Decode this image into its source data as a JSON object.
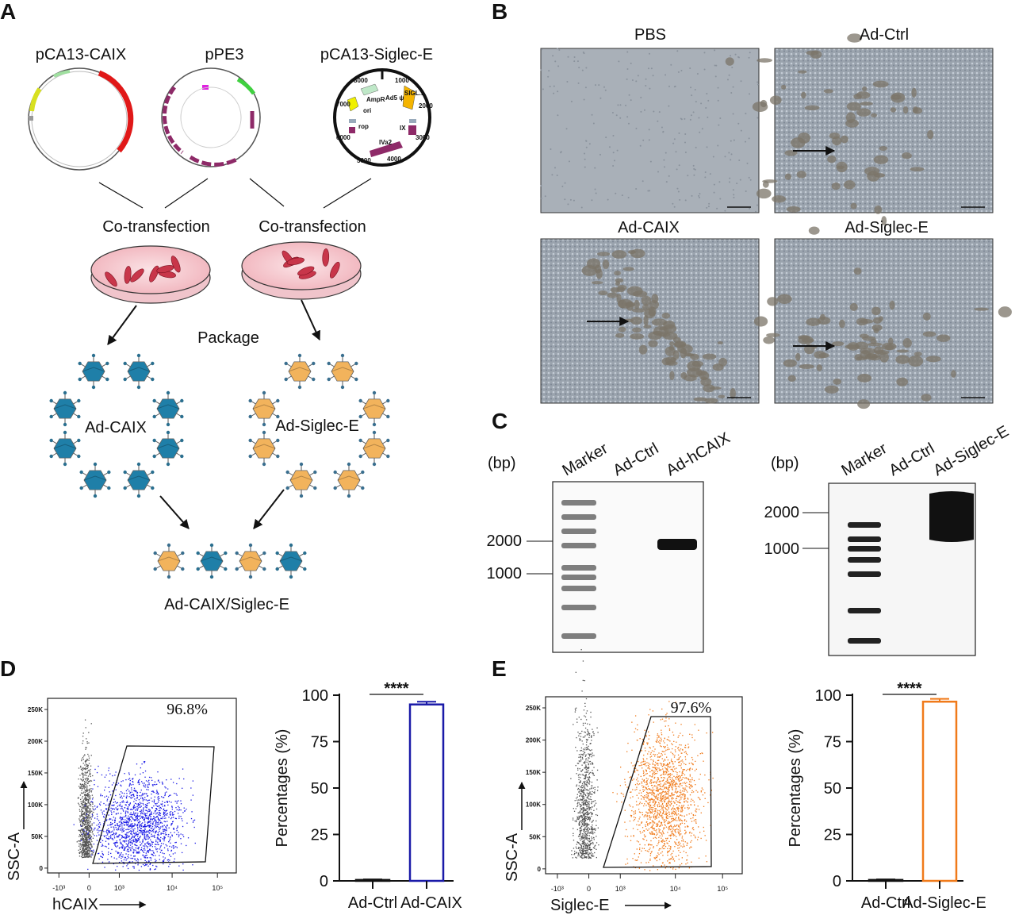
{
  "panels": {
    "A": {
      "label": "A",
      "plasmids": [
        "pCA13-CAIX",
        "pPE3",
        "pCA13-Siglec-E"
      ],
      "siglec_map": {
        "ticks": [
          "1000",
          "2000",
          "3000",
          "4000",
          "5000",
          "6000",
          "7000",
          "8000"
        ],
        "features": [
          "AmpR",
          "ori",
          "Ad5 ψ",
          "SIGL...",
          "IX",
          "IVa2",
          "rop"
        ]
      },
      "cotransfection": [
        "Co-transfection",
        "Co-transfection"
      ],
      "package": "Package",
      "virus_left": "Ad-CAIX",
      "virus_right": "Ad-Siglec-E",
      "combined": "Ad-CAIX/Siglec-E",
      "colors": {
        "caix_virus": "#1f7fa8",
        "siglec_virus": "#f2b35c",
        "dish_cells": "#c8364a"
      }
    },
    "B": {
      "label": "B",
      "images": [
        "PBS",
        "Ad-Ctrl",
        "Ad-CAIX",
        "Ad-Siglec-E"
      ]
    },
    "C": {
      "label": "C",
      "gel1": {
        "unit": "(bp)",
        "lanes": [
          "Marker",
          "Ad-Ctrl",
          "Ad-hCAIX"
        ],
        "markers": [
          "2000",
          "1000"
        ]
      },
      "gel2": {
        "unit": "(bp)",
        "lanes": [
          "Marker",
          "Ad-Ctrl",
          "Ad-Siglec-E"
        ],
        "markers": [
          "2000",
          "1000"
        ]
      }
    },
    "D": {
      "label": "D",
      "flow": {
        "percent": "96.8%",
        "xlabel": "hCAIX",
        "ylabel": "SSC-A",
        "yticks": [
          "250K",
          "200K",
          "150K",
          "100K",
          "50K",
          "0"
        ],
        "xticks": [
          "-10³",
          "0",
          "10³",
          "10⁴",
          "10⁵"
        ],
        "color": "#1a1ae6"
      }
    },
    "E": {
      "label": "E",
      "flow": {
        "percent": "97.6%",
        "xlabel": "Siglec-E",
        "ylabel": "SSC-A",
        "yticks": [
          "250K",
          "200K",
          "150K",
          "100K",
          "50K",
          "0"
        ],
        "xticks": [
          "-10³",
          "0",
          "10³",
          "10⁴",
          "10⁵"
        ],
        "color": "#f07a1a"
      }
    }
  },
  "chart_data": [
    {
      "type": "bar",
      "panel": "D",
      "categories": [
        "Ad-Ctrl",
        "Ad-CAIX"
      ],
      "values": [
        0.5,
        95
      ],
      "errors": [
        0.3,
        1.5
      ],
      "ylabel": "Percentages (%)",
      "yticks": [
        "0",
        "25",
        "50",
        "75",
        "100"
      ],
      "ylim": [
        0,
        100
      ],
      "significance": "****",
      "colors": [
        "#111111",
        "#1a1aa8"
      ]
    },
    {
      "type": "bar",
      "panel": "E",
      "categories": [
        "Ad-Ctrl",
        "Ad-Siglec-E"
      ],
      "values": [
        0.5,
        96.5
      ],
      "errors": [
        0.3,
        1.5
      ],
      "ylabel": "Percentages (%)",
      "yticks": [
        "0",
        "25",
        "50",
        "75",
        "100"
      ],
      "ylim": [
        0,
        100
      ],
      "significance": "****",
      "colors": [
        "#111111",
        "#f07a1a"
      ]
    }
  ]
}
